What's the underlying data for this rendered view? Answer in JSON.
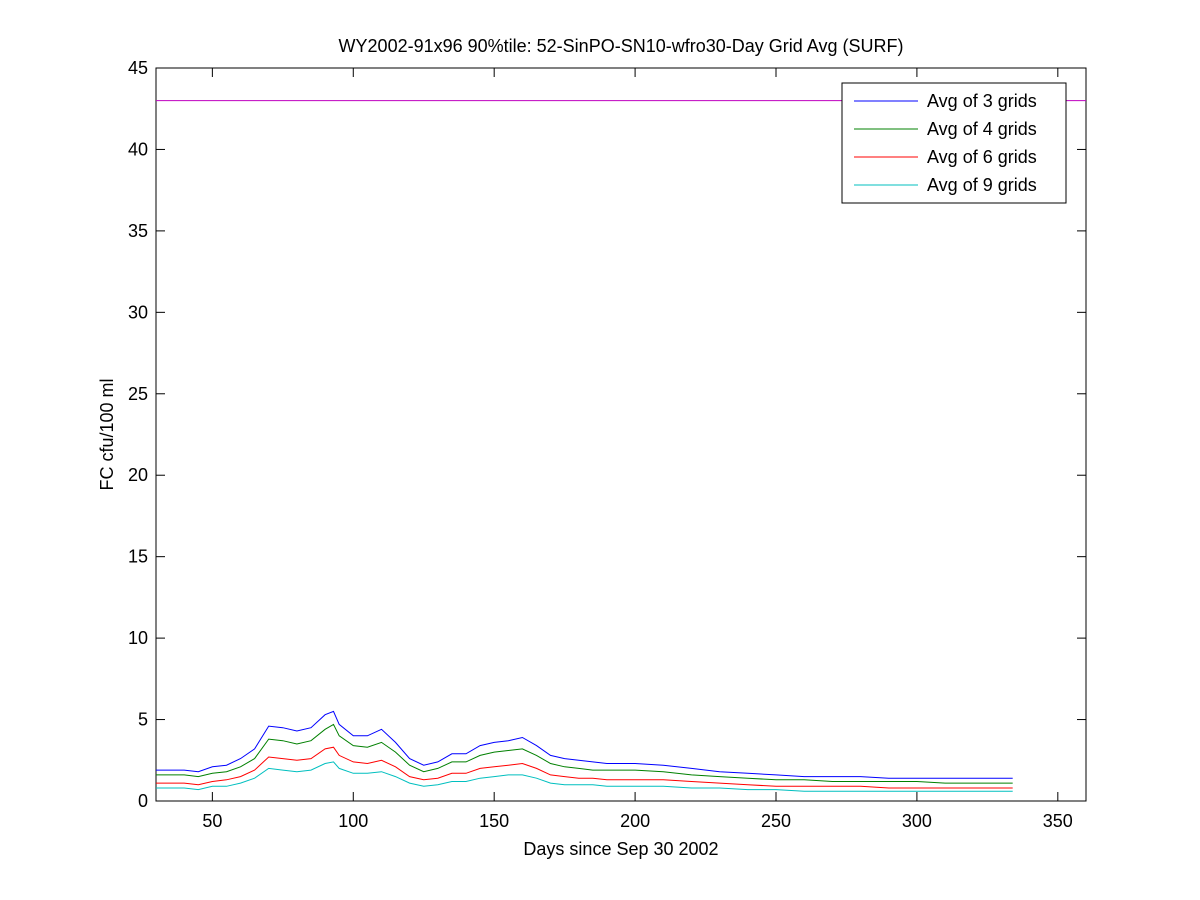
{
  "chart_data": {
    "type": "line",
    "title": "WY2002-91x96 90%tile: 52-SinPO-SN10-wfro30-Day Grid Avg (SURF)",
    "xlabel": "Days since Sep 30 2002",
    "ylabel": "FC cfu/100 ml",
    "xlim": [
      30,
      360
    ],
    "ylim": [
      0,
      45
    ],
    "xticks": [
      50,
      100,
      150,
      200,
      250,
      300,
      350
    ],
    "yticks": [
      0,
      5,
      10,
      15,
      20,
      25,
      30,
      35,
      40,
      45
    ],
    "grid": false,
    "legend_position": "top-right",
    "x": [
      30,
      35,
      40,
      45,
      50,
      55,
      60,
      65,
      70,
      75,
      80,
      85,
      90,
      93,
      95,
      100,
      105,
      110,
      115,
      120,
      125,
      130,
      135,
      140,
      145,
      150,
      155,
      160,
      165,
      170,
      175,
      180,
      185,
      190,
      195,
      200,
      210,
      220,
      230,
      240,
      250,
      260,
      270,
      280,
      290,
      300,
      310,
      320,
      330,
      334
    ],
    "series": [
      {
        "name": "Avg of 3 grids",
        "color": "#0000ff",
        "values": [
          1.9,
          1.9,
          1.9,
          1.8,
          2.1,
          2.2,
          2.6,
          3.2,
          4.6,
          4.5,
          4.3,
          4.5,
          5.3,
          5.5,
          4.7,
          4.0,
          4.0,
          4.4,
          3.6,
          2.6,
          2.2,
          2.4,
          2.9,
          2.9,
          3.4,
          3.6,
          3.7,
          3.9,
          3.4,
          2.8,
          2.6,
          2.5,
          2.4,
          2.3,
          2.3,
          2.3,
          2.2,
          2.0,
          1.8,
          1.7,
          1.6,
          1.5,
          1.5,
          1.5,
          1.4,
          1.4,
          1.4,
          1.4,
          1.4,
          1.4
        ]
      },
      {
        "name": "Avg of 4 grids",
        "color": "#008000",
        "values": [
          1.6,
          1.6,
          1.6,
          1.5,
          1.7,
          1.8,
          2.1,
          2.6,
          3.8,
          3.7,
          3.5,
          3.7,
          4.4,
          4.7,
          4.0,
          3.4,
          3.3,
          3.6,
          3.0,
          2.2,
          1.8,
          2.0,
          2.4,
          2.4,
          2.8,
          3.0,
          3.1,
          3.2,
          2.8,
          2.3,
          2.1,
          2.0,
          1.9,
          1.9,
          1.9,
          1.9,
          1.8,
          1.6,
          1.5,
          1.4,
          1.3,
          1.3,
          1.2,
          1.2,
          1.2,
          1.2,
          1.1,
          1.1,
          1.1,
          1.1
        ]
      },
      {
        "name": "Avg of 6 grids",
        "color": "#ff0000",
        "values": [
          1.1,
          1.1,
          1.1,
          1.0,
          1.2,
          1.3,
          1.5,
          1.9,
          2.7,
          2.6,
          2.5,
          2.6,
          3.2,
          3.3,
          2.8,
          2.4,
          2.3,
          2.5,
          2.1,
          1.5,
          1.3,
          1.4,
          1.7,
          1.7,
          2.0,
          2.1,
          2.2,
          2.3,
          2.0,
          1.6,
          1.5,
          1.4,
          1.4,
          1.3,
          1.3,
          1.3,
          1.3,
          1.2,
          1.1,
          1.0,
          0.9,
          0.9,
          0.9,
          0.9,
          0.8,
          0.8,
          0.8,
          0.8,
          0.8,
          0.8
        ]
      },
      {
        "name": "Avg of 9 grids",
        "color": "#00bfbf",
        "values": [
          0.8,
          0.8,
          0.8,
          0.7,
          0.9,
          0.9,
          1.1,
          1.4,
          2.0,
          1.9,
          1.8,
          1.9,
          2.3,
          2.4,
          2.0,
          1.7,
          1.7,
          1.8,
          1.5,
          1.1,
          0.9,
          1.0,
          1.2,
          1.2,
          1.4,
          1.5,
          1.6,
          1.6,
          1.4,
          1.1,
          1.0,
          1.0,
          1.0,
          0.9,
          0.9,
          0.9,
          0.9,
          0.8,
          0.8,
          0.7,
          0.7,
          0.6,
          0.6,
          0.6,
          0.6,
          0.6,
          0.6,
          0.6,
          0.6,
          0.6
        ]
      }
    ],
    "reference_line": {
      "y": 43,
      "color": "#bf00bf"
    }
  }
}
